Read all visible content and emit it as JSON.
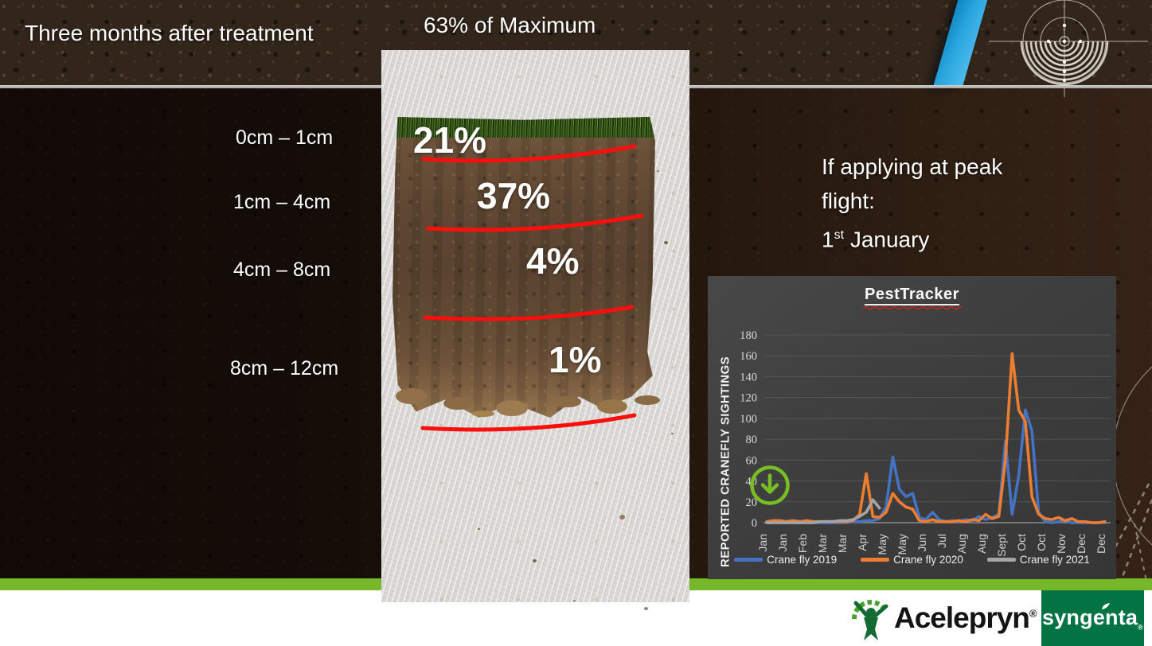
{
  "header": {
    "title": "Three months after treatment",
    "subtitle": "63% of Maximum"
  },
  "soil_core": {
    "depth_labels": [
      "0cm – 1cm",
      "1cm – 4cm",
      "4cm – 8cm",
      "8cm – 12cm"
    ],
    "percent_labels": [
      "21%",
      "37%",
      "4%",
      "1%"
    ]
  },
  "note": {
    "line1": "If applying at peak",
    "line2": "flight:",
    "date_day": "1",
    "date_suffix": "st",
    "date_month": "January"
  },
  "chart_data": {
    "type": "line",
    "title": "PestTracker",
    "ylabel": "REPORTED CRANEFLY SIGHTINGS",
    "ylim": [
      0,
      180
    ],
    "ytick_step": 20,
    "grid": true,
    "legend_position": "bottom",
    "n_points": 52,
    "x_tick_labels": [
      "Jan",
      "Jan",
      "Feb",
      "Mar",
      "Mar",
      "Apr",
      "May",
      "May",
      "Jun",
      "Jul",
      "Aug",
      "Aug",
      "Sept",
      "Oct",
      "Oct",
      "Nov",
      "Dec",
      "Dec"
    ],
    "x_tick_weeks": [
      0,
      3,
      6,
      9,
      12,
      15,
      18,
      21,
      24,
      27,
      30,
      33,
      36,
      39,
      42,
      45,
      48,
      51
    ],
    "series": [
      {
        "name": "Crane fly 2019",
        "color": "#4472C4",
        "values": [
          0,
          0,
          0,
          0,
          0,
          0,
          0,
          0,
          0,
          0,
          0,
          0,
          0,
          1,
          1,
          2,
          2,
          4,
          15,
          63,
          32,
          25,
          28,
          5,
          3,
          10,
          3,
          1,
          2,
          1,
          3,
          2,
          6,
          3,
          5,
          8,
          78,
          8,
          45,
          108,
          88,
          10,
          1,
          0,
          1,
          2,
          0,
          0,
          0,
          0,
          0,
          0
        ]
      },
      {
        "name": "Crane fly 2020",
        "color": "#ED7D31",
        "values": [
          1,
          2,
          2,
          1,
          2,
          1,
          2,
          1,
          1,
          1,
          1,
          1,
          1,
          2,
          8,
          47,
          6,
          5,
          10,
          28,
          20,
          15,
          13,
          2,
          1,
          3,
          1,
          1,
          1,
          2,
          1,
          3,
          2,
          8,
          4,
          6,
          60,
          162,
          108,
          97,
          25,
          8,
          4,
          3,
          5,
          2,
          4,
          1,
          1,
          0,
          0,
          1
        ]
      },
      {
        "name": "Crane fly 2021",
        "color": "#A5A5A5",
        "values": [
          0,
          0,
          0,
          0,
          0,
          0,
          0,
          0,
          1,
          1,
          1,
          2,
          2,
          3,
          6,
          10,
          22,
          14,
          null,
          null,
          null,
          null,
          null,
          null,
          null,
          null,
          null,
          null,
          null,
          null,
          null,
          null,
          null,
          null,
          null,
          null,
          null,
          null,
          null,
          null,
          null,
          null,
          null,
          null,
          null,
          null,
          null,
          null,
          null,
          null,
          null,
          null
        ]
      }
    ]
  },
  "icons": {
    "peak_marker": "down-arrow-circle-icon",
    "top_right_decoration": "target-crosshair-icon"
  },
  "footer": {
    "brand": "Acelepryn",
    "brand_reg": "®",
    "partner": "syngenta",
    "partner_reg": "®"
  },
  "colors": {
    "accent_green_bar": "#76B82A",
    "icon_green": "#76BE21",
    "stripe_blue": "#2AA6DE",
    "syngenta_green": "#027444",
    "acelepryn_green": "#156A34",
    "red_line": "#FA0F0C",
    "series_blue": "#4472C4",
    "series_orange": "#ED7D31",
    "series_gray": "#A5A5A5"
  }
}
